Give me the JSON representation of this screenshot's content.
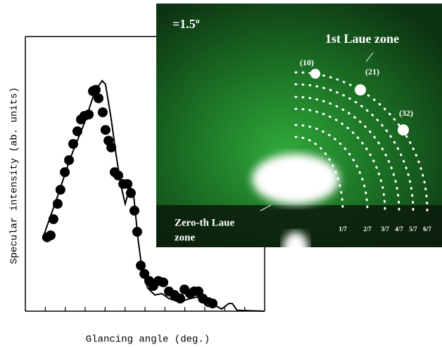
{
  "chart_data": {
    "type": "line",
    "xlabel": "Glancing angle (deg.)",
    "ylabel": "Specular intensity (ab. units)",
    "xlim": [
      0,
      12
    ],
    "ylim": [
      0,
      10
    ],
    "xticks": [
      1,
      2,
      3,
      4,
      5,
      6,
      7,
      8,
      9,
      10,
      11
    ],
    "series": [
      {
        "style": "markers",
        "color": "#000000",
        "x": [
          1.09,
          1.27,
          1.41,
          1.62,
          1.76,
          1.98,
          2.19,
          2.4,
          2.61,
          2.79,
          2.96,
          3.18,
          3.39,
          3.53,
          3.67,
          3.88,
          4.02,
          4.17,
          4.31,
          4.48,
          4.66,
          4.91,
          5.12,
          5.29,
          5.47,
          5.61,
          5.79,
          5.97,
          6.21,
          6.42,
          6.67,
          6.92,
          7.2,
          7.48,
          7.77,
          7.98,
          8.26,
          8.47,
          8.68,
          8.9,
          9.18,
          9.39
        ],
        "values": [
          2.69,
          2.76,
          3.35,
          3.91,
          4.42,
          5.06,
          5.5,
          6.09,
          6.55,
          6.98,
          7.11,
          7.16,
          8.01,
          8.06,
          7.75,
          7.24,
          6.6,
          6.21,
          5.96,
          5.06,
          4.94,
          4.63,
          4.63,
          4.3,
          3.66,
          2.89,
          1.66,
          1.36,
          1.1,
          0.92,
          1.1,
          1.05,
          0.72,
          0.59,
          0.46,
          0.79,
          0.64,
          0.72,
          0.72,
          0.46,
          0.33,
          0.28
        ]
      },
      {
        "style": "line",
        "color": "#000000",
        "x": [
          0.92,
          1.55,
          2.26,
          2.96,
          3.49,
          3.85,
          4.02,
          4.31,
          4.55,
          4.8,
          5.01,
          5.26,
          5.44,
          5.65,
          5.86,
          6.14,
          6.49,
          6.85,
          7.2,
          7.73,
          8.26,
          8.79,
          9.32,
          9.85,
          10.2,
          10.38,
          10.62,
          12.0
        ],
        "values": [
          2.76,
          4.04,
          5.58,
          6.85,
          8.01,
          8.39,
          8.26,
          6.98,
          5.7,
          4.55,
          3.91,
          4.55,
          4.17,
          2.63,
          1.48,
          0.84,
          0.59,
          0.64,
          0.46,
          0.33,
          0.46,
          0.54,
          0.28,
          0.08,
          0.28,
          0.28,
          0.03,
          0
        ]
      }
    ]
  },
  "inset": {
    "angle": "=1.5º",
    "zone_label": "1st Laue zone",
    "spots": [
      "(10)",
      "(21)",
      "(32)"
    ],
    "zero_zone": [
      "Zero-th Laue",
      "zone"
    ],
    "fractions": [
      "1/7",
      "2/7",
      "3/7",
      "4/7",
      "5/7",
      "6/7"
    ]
  }
}
